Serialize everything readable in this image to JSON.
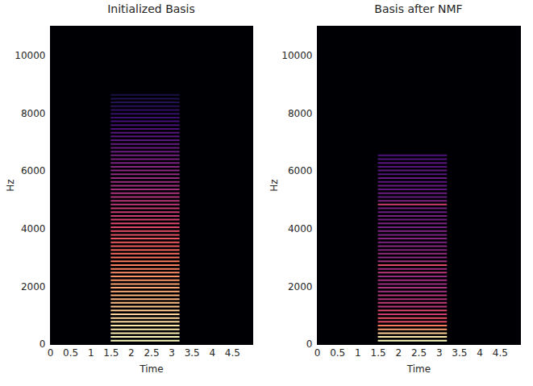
{
  "chart_data": [
    {
      "type": "heatmap",
      "title": "Initialized Basis",
      "x_label": "Time",
      "y_label": "Hz",
      "xlim": [
        0,
        5
      ],
      "xticks": [
        0,
        0.5,
        1,
        1.5,
        2,
        2.5,
        3,
        3.5,
        4,
        4.5
      ],
      "ylim": [
        0,
        11025
      ],
      "yticks": [
        0,
        2000,
        4000,
        6000,
        8000,
        10000
      ],
      "color": "magma",
      "intensity_lim": [
        0,
        1
      ],
      "time_range": [
        1.5,
        3.2
      ],
      "frequencies": [
        131,
        262,
        393,
        524,
        655,
        786,
        917,
        1048,
        1179,
        1310,
        1441,
        1572,
        1703,
        1834,
        1965,
        2096,
        2227,
        2358,
        2489,
        2620,
        2751,
        2882,
        3013,
        3144,
        3275,
        3406,
        3537,
        3668,
        3799,
        3930,
        4061,
        4192,
        4323,
        4454,
        4585,
        4716,
        4847,
        4978,
        5109,
        5240,
        5371,
        5502,
        5633,
        5764,
        5895,
        6026,
        6157,
        6288,
        6419,
        6550,
        6681,
        6812,
        6943,
        7074,
        7205,
        7336,
        7467,
        7598,
        7729,
        7860,
        7991,
        8122,
        8253,
        8384,
        8515,
        8646
      ],
      "intensities": [
        1.0,
        0.99,
        0.97,
        0.96,
        0.95,
        0.93,
        0.92,
        0.91,
        0.89,
        0.88,
        0.86,
        0.85,
        0.84,
        0.82,
        0.81,
        0.8,
        0.78,
        0.77,
        0.76,
        0.74,
        0.73,
        0.72,
        0.7,
        0.69,
        0.68,
        0.66,
        0.65,
        0.64,
        0.62,
        0.61,
        0.59,
        0.58,
        0.57,
        0.55,
        0.54,
        0.53,
        0.51,
        0.5,
        0.49,
        0.47,
        0.46,
        0.45,
        0.43,
        0.42,
        0.41,
        0.39,
        0.38,
        0.36,
        0.35,
        0.34,
        0.32,
        0.31,
        0.3,
        0.28,
        0.27,
        0.26,
        0.24,
        0.23,
        0.22,
        0.2,
        0.19,
        0.18,
        0.16,
        0.15,
        0.14,
        0.12
      ]
    },
    {
      "type": "heatmap",
      "title": "Basis after NMF",
      "x_label": "Time",
      "y_label": "Hz",
      "xlim": [
        0,
        5
      ],
      "xticks": [
        0,
        0.5,
        1,
        1.5,
        2,
        2.5,
        3,
        3.5,
        4,
        4.5
      ],
      "ylim": [
        0,
        11025
      ],
      "yticks": [
        0,
        2000,
        4000,
        6000,
        8000,
        10000
      ],
      "color": "magma",
      "intensity_lim": [
        0,
        1
      ],
      "time_range": [
        1.5,
        3.2
      ],
      "frequencies": [
        131,
        262,
        393,
        524,
        655,
        786,
        917,
        1048,
        1179,
        1310,
        1441,
        1572,
        1703,
        1834,
        1965,
        2096,
        2227,
        2358,
        2489,
        2620,
        2751,
        2882,
        3013,
        3144,
        3275,
        3406,
        3537,
        3668,
        3799,
        3930,
        4061,
        4192,
        4323,
        4454,
        4585,
        4716,
        4847,
        4978,
        5109,
        5240,
        5371,
        5502,
        5633,
        5764,
        5895,
        6026,
        6157,
        6288,
        6419,
        6550
      ],
      "intensities": [
        1.0,
        0.95,
        0.9,
        0.8,
        0.72,
        0.6,
        0.62,
        0.55,
        0.58,
        0.5,
        0.52,
        0.48,
        0.5,
        0.45,
        0.47,
        0.44,
        0.46,
        0.42,
        0.5,
        0.44,
        0.6,
        0.45,
        0.4,
        0.42,
        0.38,
        0.4,
        0.36,
        0.38,
        0.35,
        0.37,
        0.34,
        0.36,
        0.33,
        0.35,
        0.32,
        0.34,
        0.55,
        0.36,
        0.3,
        0.32,
        0.29,
        0.31,
        0.28,
        0.3,
        0.27,
        0.29,
        0.26,
        0.28,
        0.25,
        0.24
      ]
    }
  ]
}
